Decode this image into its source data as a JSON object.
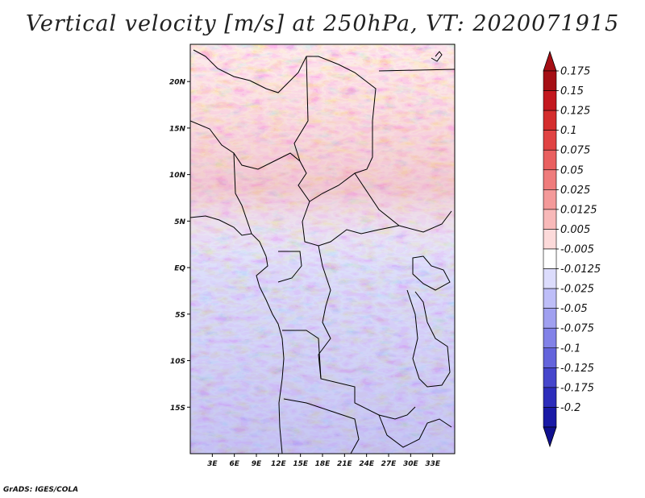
{
  "title": "Vertical velocity [m/s] at 250hPa, VT: 2020071915",
  "footer": "GrADS: IGES/COLA",
  "map": {
    "lon_range": [
      0,
      36
    ],
    "lat_range": [
      -20,
      24
    ],
    "lat_labels": [
      {
        "lat": 20,
        "label": "20N"
      },
      {
        "lat": 15,
        "label": "15N"
      },
      {
        "lat": 10,
        "label": "10N"
      },
      {
        "lat": 5,
        "label": "5N"
      },
      {
        "lat": 0,
        "label": "EQ"
      },
      {
        "lat": -5,
        "label": "5S"
      },
      {
        "lat": -10,
        "label": "10S"
      },
      {
        "lat": -15,
        "label": "15S"
      }
    ],
    "lon_labels": [
      {
        "lon": 3,
        "label": "3E"
      },
      {
        "lon": 6,
        "label": "6E"
      },
      {
        "lon": 9,
        "label": "9E"
      },
      {
        "lon": 12,
        "label": "12E"
      },
      {
        "lon": 15,
        "label": "15E"
      },
      {
        "lon": 18,
        "label": "18E"
      },
      {
        "lon": 21,
        "label": "21E"
      },
      {
        "lon": 24,
        "label": "24E"
      },
      {
        "lon": 27,
        "label": "27E"
      },
      {
        "lon": 30,
        "label": "30E"
      },
      {
        "lon": 33,
        "label": "33E"
      }
    ]
  },
  "colorbar": {
    "labels": [
      "0.175",
      "0.15",
      "0.125",
      "0.1",
      "0.075",
      "0.05",
      "0.025",
      "0.0125",
      "0.005",
      "-0.005",
      "-0.0125",
      "-0.025",
      "-0.05",
      "-0.075",
      "-0.1",
      "-0.125",
      "-0.175",
      "-0.2"
    ],
    "colors": [
      "#a50f15",
      "#c3181f",
      "#d42d2d",
      "#e04343",
      "#e96060",
      "#ef7c7c",
      "#f49a9a",
      "#f8b9b9",
      "#fcdada",
      "#ffffff",
      "#dcdcfc",
      "#bebef8",
      "#a0a0f0",
      "#8282e8",
      "#6464dc",
      "#4646cc",
      "#2d2dbb",
      "#1a1aa6",
      "#10108f"
    ],
    "arrow_top_color": "#a50f15",
    "arrow_bottom_color": "#10108f"
  }
}
